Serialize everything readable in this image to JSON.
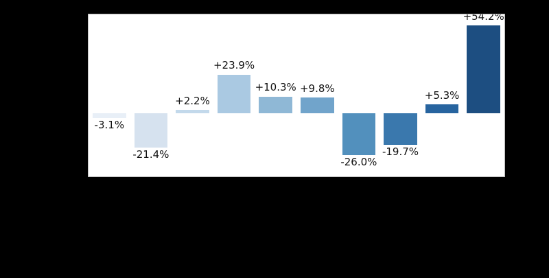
{
  "page": {
    "background_color": "#000000"
  },
  "chart_data": {
    "type": "bar",
    "orientation": "vertical",
    "baseline_value": 0,
    "ylim": [
      -39,
      61
    ],
    "grid": "off",
    "legend": "none",
    "plot_background": "#ffffff",
    "figure_background": "#000000",
    "spine_color": "#b9b9b9",
    "label_color": "#111111",
    "values": [
      -3.1,
      -21.4,
      2.2,
      23.9,
      10.3,
      9.8,
      -26.0,
      -19.7,
      5.3,
      54.2
    ],
    "labels": [
      "-3.1%",
      "-21.4%",
      "+2.2%",
      "+23.9%",
      "+10.3%",
      "+9.8%",
      "-26.0%",
      "-19.7%",
      "+5.3%",
      "+54.2%"
    ],
    "bar_colors": [
      "#e8eff7",
      "#d6e2ef",
      "#c3d9eb",
      "#aac9e2",
      "#8fb8d6",
      "#71a4cb",
      "#5290bd",
      "#3a78ad",
      "#27649f",
      "#1d4e81"
    ]
  }
}
